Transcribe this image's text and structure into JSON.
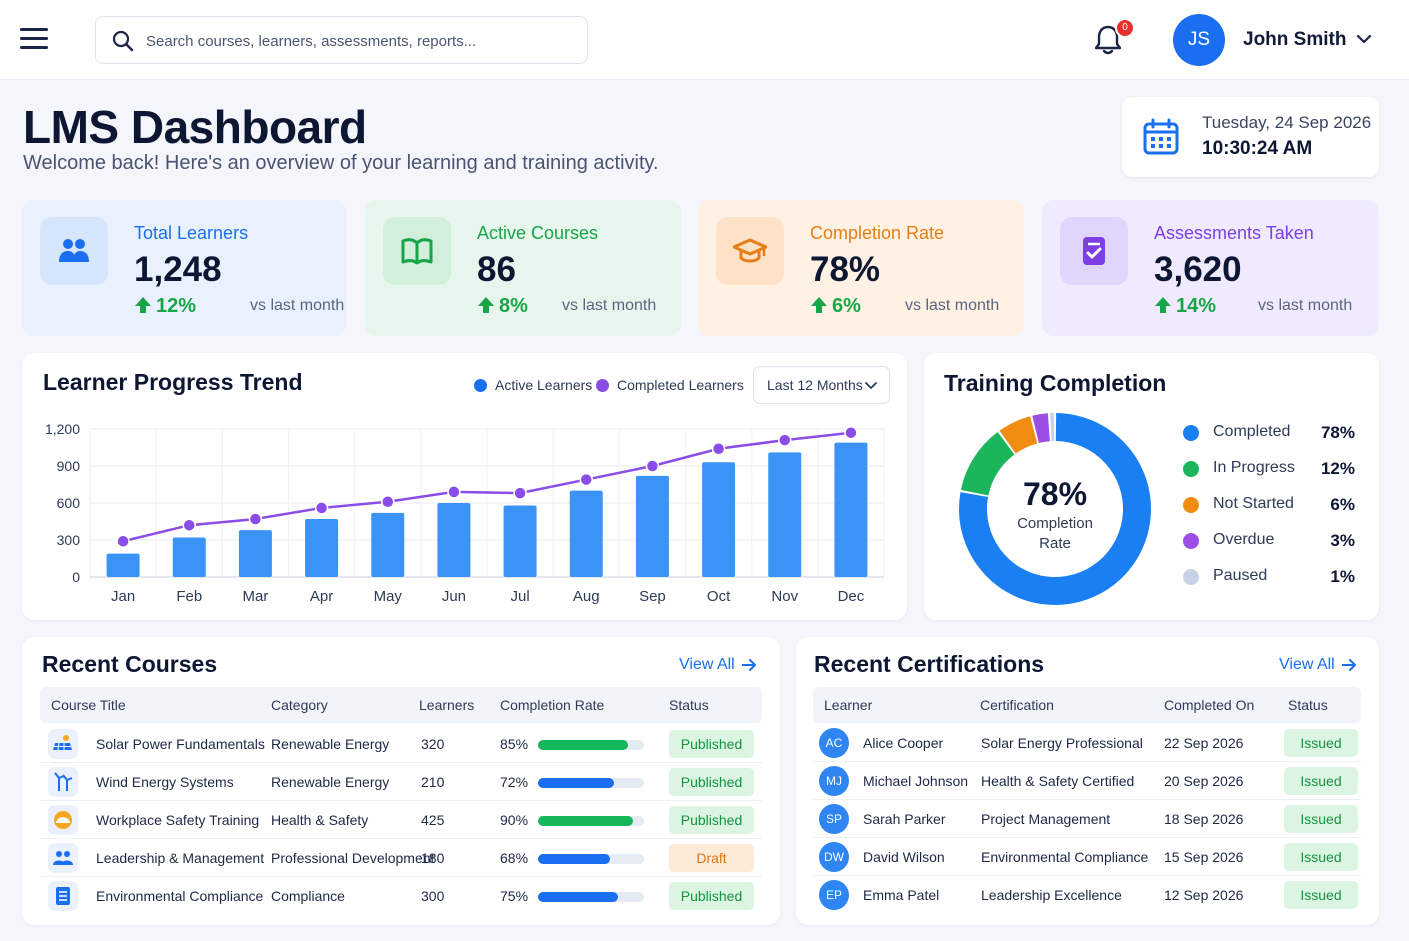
{
  "search": {
    "placeholder": "Search courses, learners, assessments, reports..."
  },
  "notifications": {
    "count": "0"
  },
  "user": {
    "initials": "JS",
    "name": "John Smith"
  },
  "header": {
    "title": "LMS Dashboard",
    "subtitle": "Welcome back! Here's an overview of your learning and training activity.",
    "date": "Tuesday, 24 Sep 2026",
    "time": "10:30:24 AM"
  },
  "stats": [
    {
      "label": "Total Learners",
      "value": "1,248",
      "delta": "12%",
      "vs": "vs last month",
      "icon": "users-icon",
      "color": "#1a6ff0",
      "bg": "#e8f1fd"
    },
    {
      "label": "Active Courses",
      "value": "86",
      "delta": "8%",
      "vs": "vs last month",
      "icon": "book-icon",
      "color": "#18a548",
      "bg": "#e6f6ec"
    },
    {
      "label": "Completion Rate",
      "value": "78%",
      "delta": "6%",
      "vs": "vs last month",
      "icon": "graduation-cap-icon",
      "color": "#e67e17",
      "bg": "#fff1e4"
    },
    {
      "label": "Assessments Taken",
      "value": "3,620",
      "delta": "14%",
      "vs": "vs last month",
      "icon": "clipboard-check-icon",
      "color": "#7b3fe4",
      "bg": "#efeafd"
    }
  ],
  "progress_chart": {
    "title": "Learner Progress Trend",
    "range": "Last 12 Months",
    "legend": [
      "Active Learners",
      "Completed Learners"
    ]
  },
  "chart_data": [
    {
      "type": "bar",
      "title": "Learner Progress Trend",
      "categories": [
        "Jan",
        "Feb",
        "Mar",
        "Apr",
        "May",
        "Jun",
        "Jul",
        "Aug",
        "Sep",
        "Oct",
        "Nov",
        "Dec"
      ],
      "series": [
        {
          "name": "Active Learners",
          "type": "bar",
          "color": "#3b94f5",
          "values": [
            190,
            320,
            380,
            470,
            520,
            600,
            580,
            700,
            820,
            930,
            1010,
            1090
          ]
        },
        {
          "name": "Completed Learners",
          "type": "line",
          "color": "#8a4de8",
          "values": [
            290,
            420,
            470,
            560,
            610,
            690,
            680,
            790,
            900,
            1040,
            1110,
            1170
          ]
        }
      ],
      "yticks": [
        0,
        300,
        600,
        900,
        1200
      ],
      "ytick_labels": [
        "0",
        "300",
        "600",
        "900",
        "1,200"
      ],
      "ylim": [
        0,
        1200
      ],
      "grid": true
    },
    {
      "type": "pie",
      "title": "Training Completion",
      "center_value": "78%",
      "center_label_1": "Completion",
      "center_label_2": "Rate",
      "slices": [
        {
          "label": "Completed",
          "value": 78,
          "display": "78%",
          "color": "#1a7ff2"
        },
        {
          "label": "In Progress",
          "value": 12,
          "display": "12%",
          "color": "#1bb55c"
        },
        {
          "label": "Not Started",
          "value": 6,
          "display": "6%",
          "color": "#f08c12"
        },
        {
          "label": "Overdue",
          "value": 3,
          "display": "3%",
          "color": "#9b4fe6"
        },
        {
          "label": "Paused",
          "value": 1,
          "display": "1%",
          "color": "#c6d3e6"
        }
      ]
    }
  ],
  "recent_courses": {
    "title": "Recent Courses",
    "view_all": "View All",
    "headers": [
      "Course Title",
      "Category",
      "Learners",
      "Completion Rate",
      "Status"
    ],
    "rows": [
      {
        "title": "Solar Power Fundamentals",
        "category": "Renewable Energy",
        "learners": "320",
        "rate": "85%",
        "rate_value": 85,
        "bar_color": "#14b85a",
        "status": "Published",
        "icon": "solar-panel-icon"
      },
      {
        "title": "Wind Energy Systems",
        "category": "Renewable Energy",
        "learners": "210",
        "rate": "72%",
        "rate_value": 72,
        "bar_color": "#1a6ff0",
        "status": "Published",
        "icon": "wind-turbine-icon"
      },
      {
        "title": "Workplace Safety Training",
        "category": "Health & Safety",
        "learners": "425",
        "rate": "90%",
        "rate_value": 90,
        "bar_color": "#14b85a",
        "status": "Published",
        "icon": "hard-hat-icon"
      },
      {
        "title": "Leadership & Management",
        "category": "Professional Development",
        "learners": "180",
        "rate": "68%",
        "rate_value": 68,
        "bar_color": "#1a6ff0",
        "status": "Draft",
        "icon": "team-icon"
      },
      {
        "title": "Environmental Compliance",
        "category": "Compliance",
        "learners": "300",
        "rate": "75%",
        "rate_value": 75,
        "bar_color": "#1a6ff0",
        "status": "Published",
        "icon": "document-list-icon"
      }
    ]
  },
  "recent_certifications": {
    "title": "Recent Certifications",
    "view_all": "View All",
    "headers": [
      "Learner",
      "Certification",
      "Completed On",
      "Status"
    ],
    "rows": [
      {
        "initials": "AC",
        "learner": "Alice Cooper",
        "certification": "Solar Energy Professional",
        "date": "22 Sep 2026",
        "status": "Issued"
      },
      {
        "initials": "MJ",
        "learner": "Michael Johnson",
        "certification": "Health & Safety Certified",
        "date": "20 Sep 2026",
        "status": "Issued"
      },
      {
        "initials": "SP",
        "learner": "Sarah Parker",
        "certification": "Project Management",
        "date": "18 Sep 2026",
        "status": "Issued"
      },
      {
        "initials": "DW",
        "learner": "David Wilson",
        "certification": "Environmental Compliance",
        "date": "15 Sep 2026",
        "status": "Issued"
      },
      {
        "initials": "EP",
        "learner": "Emma Patel",
        "certification": "Leadership Excellence",
        "date": "12 Sep 2026",
        "status": "Issued"
      }
    ]
  }
}
